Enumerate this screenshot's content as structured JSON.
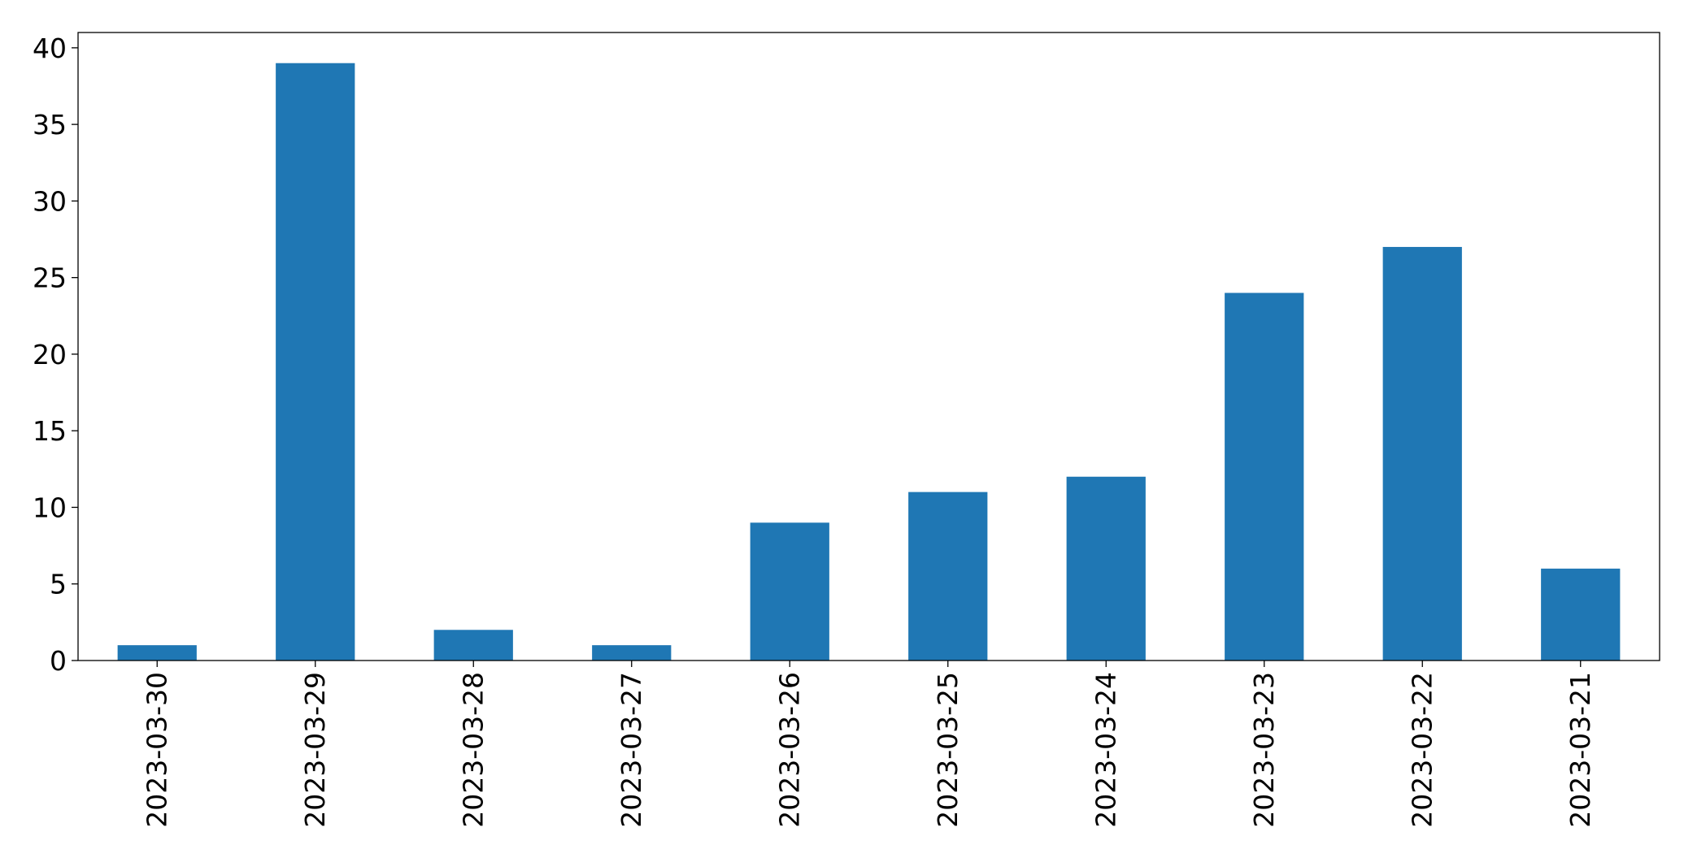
{
  "chart_data": {
    "type": "bar",
    "title": "",
    "xlabel": "",
    "ylabel": "",
    "categories": [
      "2023-03-30",
      "2023-03-29",
      "2023-03-28",
      "2023-03-27",
      "2023-03-26",
      "2023-03-25",
      "2023-03-24",
      "2023-03-23",
      "2023-03-22",
      "2023-03-21"
    ],
    "values": [
      1,
      39,
      2,
      1,
      9,
      11,
      12,
      24,
      27,
      6
    ],
    "ylim": [
      0,
      41
    ],
    "yticks": [
      0,
      5,
      10,
      15,
      20,
      25,
      30,
      35,
      40
    ],
    "grid": false,
    "legend": "none",
    "bar_color": "#1f77b4",
    "x_tick_rotation": "vertical"
  }
}
